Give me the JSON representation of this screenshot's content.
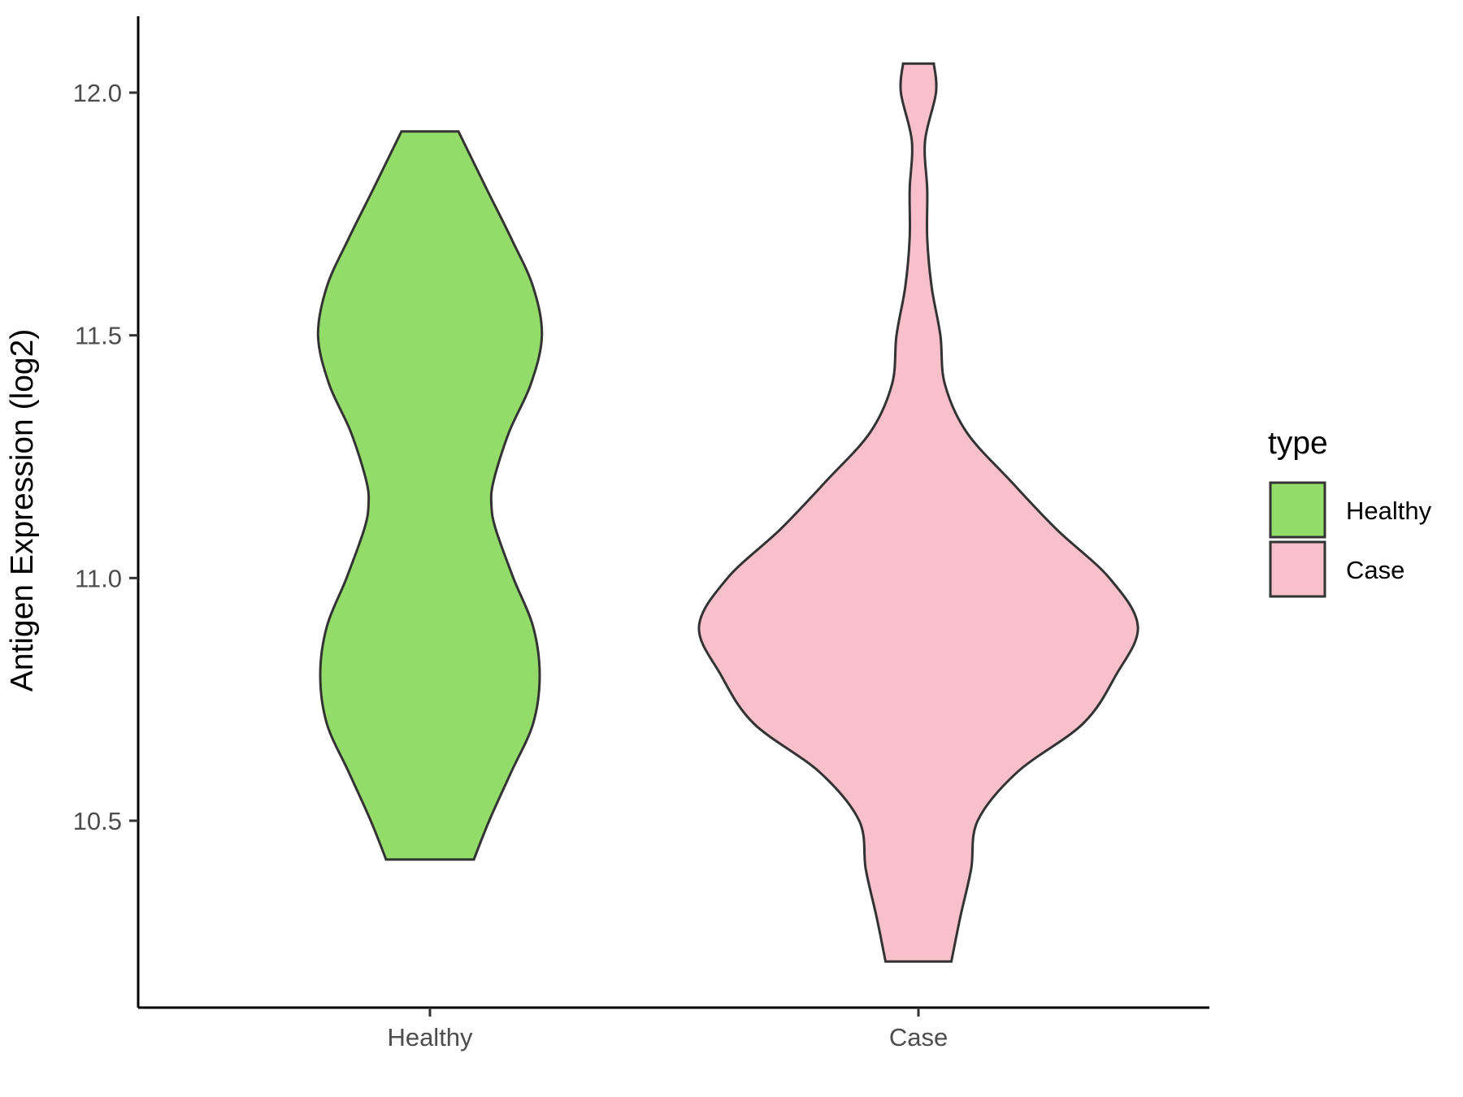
{
  "chart_data": {
    "type": "violin",
    "title": "",
    "xlabel": "",
    "ylabel": "Antigen Expression (log2)",
    "categories": [
      "Healthy",
      "Case"
    ],
    "ylim": [
      10.12,
      12.16
    ],
    "yticks": [
      10.5,
      11.0,
      11.5,
      12.0
    ],
    "ytick_labels": [
      "10.5",
      "11.0",
      "11.5",
      "12.0"
    ],
    "legend": {
      "title": "type",
      "position": "right",
      "entries": [
        "Healthy",
        "Case"
      ]
    },
    "colors": {
      "Healthy": "#93dc6a",
      "Case": "#f7c0cb",
      "outline": "#333333"
    },
    "series": [
      {
        "category": "Healthy",
        "min": 10.42,
        "max": 11.92,
        "density": [
          [
            10.42,
            0.2
          ],
          [
            10.5,
            0.27
          ],
          [
            10.6,
            0.37
          ],
          [
            10.7,
            0.47
          ],
          [
            10.8,
            0.5
          ],
          [
            10.9,
            0.47
          ],
          [
            11.0,
            0.38
          ],
          [
            11.1,
            0.3
          ],
          [
            11.15,
            0.28
          ],
          [
            11.2,
            0.29
          ],
          [
            11.3,
            0.36
          ],
          [
            11.4,
            0.46
          ],
          [
            11.5,
            0.51
          ],
          [
            11.6,
            0.47
          ],
          [
            11.7,
            0.37
          ],
          [
            11.8,
            0.26
          ],
          [
            11.92,
            0.13
          ]
        ]
      },
      {
        "category": "Case",
        "min": 10.21,
        "max": 12.06,
        "density": [
          [
            10.21,
            0.15
          ],
          [
            10.3,
            0.19
          ],
          [
            10.4,
            0.24
          ],
          [
            10.5,
            0.27
          ],
          [
            10.6,
            0.45
          ],
          [
            10.7,
            0.75
          ],
          [
            10.8,
            0.9
          ],
          [
            10.9,
            1.0
          ],
          [
            11.0,
            0.87
          ],
          [
            11.1,
            0.63
          ],
          [
            11.2,
            0.42
          ],
          [
            11.3,
            0.22
          ],
          [
            11.4,
            0.12
          ],
          [
            11.5,
            0.1
          ],
          [
            11.6,
            0.06
          ],
          [
            11.7,
            0.04
          ],
          [
            11.8,
            0.04
          ],
          [
            11.9,
            0.03
          ],
          [
            12.0,
            0.08
          ],
          [
            12.06,
            0.07
          ]
        ]
      }
    ]
  }
}
